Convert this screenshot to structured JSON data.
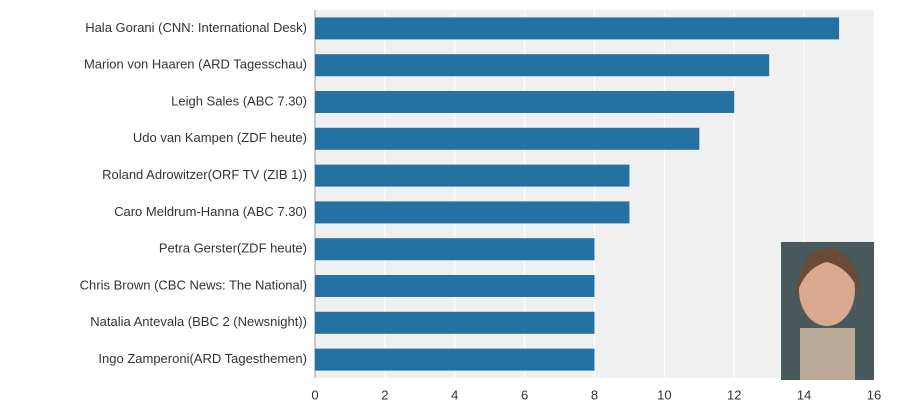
{
  "chart_data": {
    "type": "bar",
    "orientation": "horizontal",
    "categories": [
      "Hala Gorani (CNN: International Desk)",
      "Marion von Haaren (ARD Tagesschau)",
      "Leigh Sales (ABC 7.30)",
      "Udo van Kampen (ZDF heute)",
      "Roland Adrowitzer(ORF TV (ZIB 1))",
      "Caro Meldrum-Hanna  (ABC 7.30)",
      "Petra Gerster(ZDF heute)",
      "Chris Brown (CBC News: The National)",
      "Natalia Antevala (BBC 2 (Newsnight))",
      "Ingo Zamperoni(ARD Tagesthemen)"
    ],
    "values": [
      15,
      13,
      12,
      11,
      9,
      9,
      8,
      8,
      8,
      8
    ],
    "color": "#2471a3",
    "xlim": [
      0,
      16
    ],
    "xticks": [
      0,
      2,
      4,
      6,
      8,
      10,
      12,
      14,
      16
    ],
    "grid": true
  }
}
